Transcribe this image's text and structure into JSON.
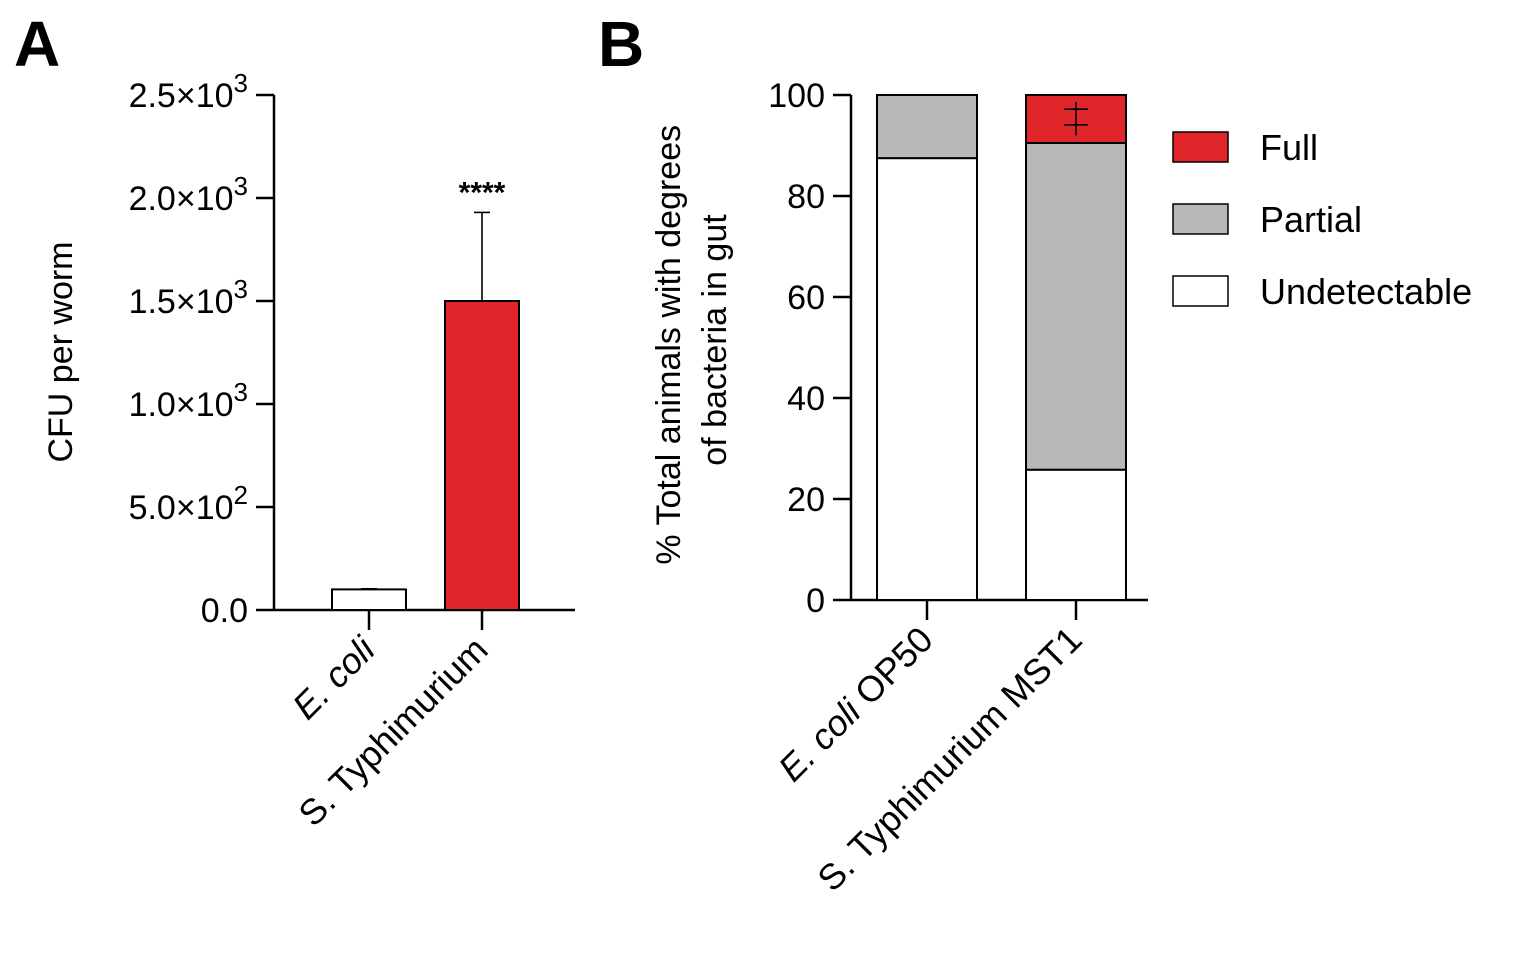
{
  "panels": {
    "a": {
      "label": "A"
    },
    "b": {
      "label": "B"
    }
  },
  "chart_data": [
    {
      "panel": "A",
      "type": "bar",
      "ylabel": "CFU per worm",
      "xlabel": "",
      "ylim": [
        0,
        2500
      ],
      "yticks": [
        {
          "value": 0,
          "mantissa": "0.0",
          "exp": ""
        },
        {
          "value": 500,
          "mantissa": "5.0×10",
          "exp": "2"
        },
        {
          "value": 1000,
          "mantissa": "1.0×10",
          "exp": "3"
        },
        {
          "value": 1500,
          "mantissa": "1.5×10",
          "exp": "3"
        },
        {
          "value": 2000,
          "mantissa": "2.0×10",
          "exp": "3"
        },
        {
          "value": 2500,
          "mantissa": "2.5×10",
          "exp": "3"
        }
      ],
      "categories": [
        {
          "italic": "E. coli",
          "rest": ""
        },
        {
          "italic": "",
          "rest": "S. Typhimurium"
        }
      ],
      "values": [
        100,
        1500
      ],
      "errors": [
        3,
        430
      ],
      "colors": [
        "#ffffff",
        "#e0262a"
      ],
      "annotations": [
        "",
        "****"
      ],
      "grid": false
    },
    {
      "panel": "B",
      "type": "bar",
      "stacked": true,
      "ylabel_lines": [
        "% Total animals with degrees",
        "of bacteria in gut"
      ],
      "xlabel": "",
      "ylim": [
        0,
        100
      ],
      "yticks": [
        0,
        20,
        40,
        60,
        80,
        100
      ],
      "categories": [
        {
          "italic": "E. coli",
          "rest": " OP50"
        },
        {
          "italic": "",
          "rest": "S. Typhimurium MST1"
        }
      ],
      "series": [
        {
          "name": "Undetectable",
          "color": "#ffffff",
          "values": [
            87.5,
            25.8
          ],
          "errors": [
            0.6,
            0.8
          ]
        },
        {
          "name": "Partial",
          "color": "#b8b8b8",
          "values": [
            12.5,
            64.7
          ],
          "errors": [
            0,
            0
          ]
        },
        {
          "name": "Full",
          "color": "#e0262a",
          "values": [
            0,
            9.5
          ],
          "errors": [
            0,
            0
          ]
        }
      ],
      "extra_error_marks": [
        {
          "category": 1,
          "center": 95.3,
          "half": 3.3,
          "caps": [
            97.2,
            94.1
          ]
        }
      ],
      "legend": {
        "position": "right",
        "entries": [
          {
            "label": "Full",
            "color": "#e0262a"
          },
          {
            "label": "Partial",
            "color": "#b8b8b8"
          },
          {
            "label": "Undetectable",
            "color": "#ffffff"
          }
        ]
      },
      "grid": false
    }
  ]
}
